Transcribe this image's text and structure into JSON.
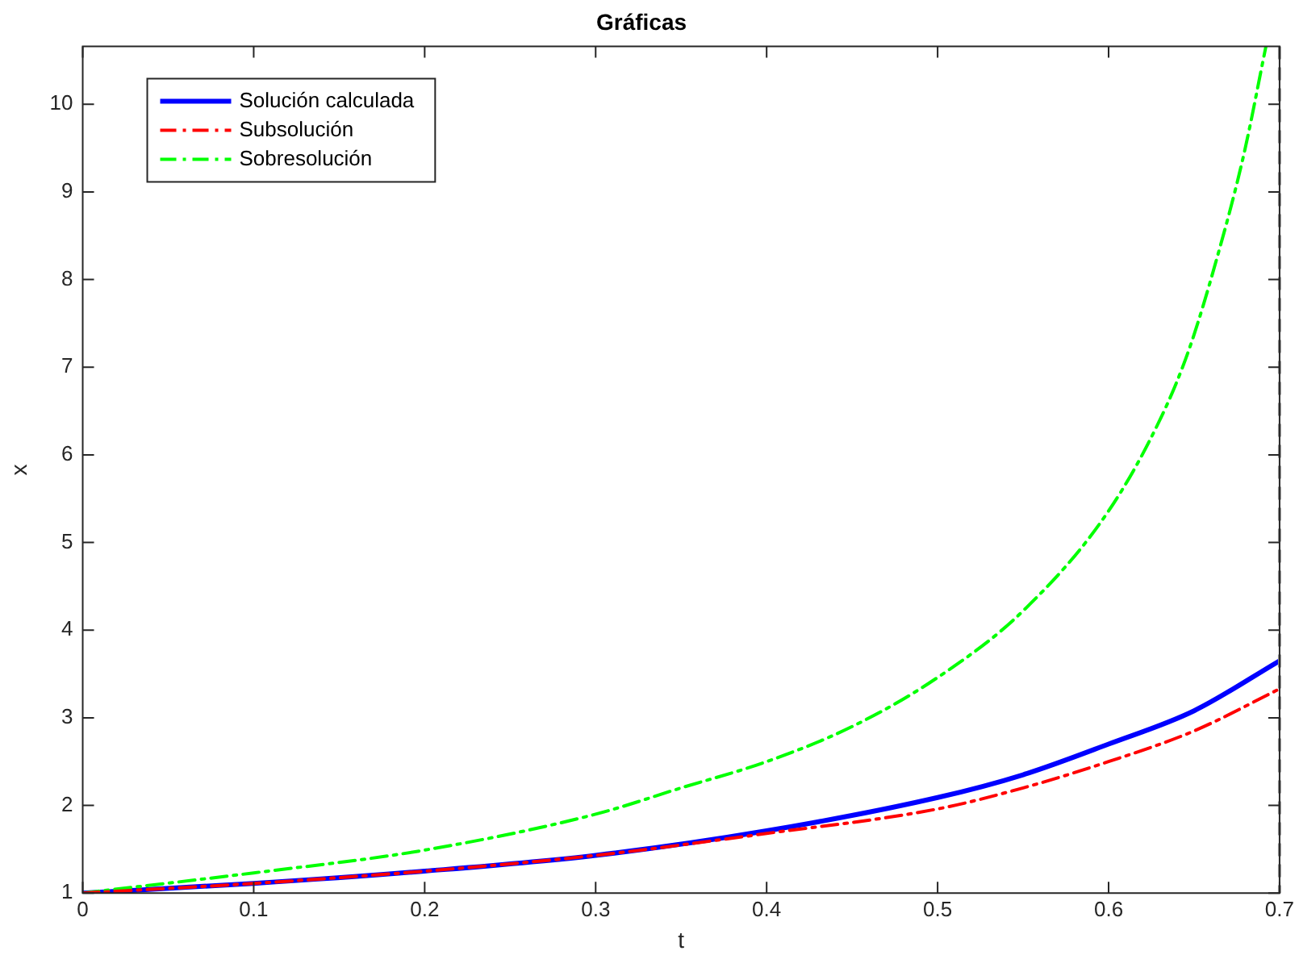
{
  "chart_data": {
    "type": "line",
    "title": "Gráficas",
    "xlabel": "t",
    "ylabel": "x",
    "xlim": [
      0,
      0.7
    ],
    "xticks": [
      0,
      0.1,
      0.2,
      0.3,
      0.4,
      0.5,
      0.6,
      0.7
    ],
    "ylim": [
      1,
      10.66
    ],
    "yticks": [
      1,
      2,
      3,
      4,
      5,
      6,
      7,
      8,
      9,
      10
    ],
    "grid": false,
    "legend": "top left",
    "marker": "none",
    "ref_lines": [
      {
        "axis": "x",
        "value": 0.7,
        "color": "#999999",
        "line_style": "dashed"
      }
    ],
    "series": [
      {
        "name": "Solución calculada",
        "color": "#0000ff",
        "line_style": "solid",
        "x": [
          0,
          0.1,
          0.2,
          0.3,
          0.4,
          0.5,
          0.55,
          0.6,
          0.65,
          0.7
        ],
        "values": [
          1,
          1.11,
          1.25,
          1.43,
          1.71,
          2.09,
          2.35,
          2.7,
          3.08,
          3.65
        ]
      },
      {
        "name": "Subsolución",
        "color": "#ff0000",
        "line_style": "dashdot",
        "x": [
          0,
          0.1,
          0.2,
          0.3,
          0.4,
          0.5,
          0.55,
          0.6,
          0.65,
          0.7
        ],
        "values": [
          1,
          1.11,
          1.25,
          1.43,
          1.68,
          1.96,
          2.2,
          2.5,
          2.85,
          3.33
        ]
      },
      {
        "name": "Sobresolución",
        "color": "#00ff00",
        "line_style": "dashdot",
        "x": [
          0,
          0.1,
          0.2,
          0.3,
          0.35,
          0.4,
          0.45,
          0.5,
          0.55,
          0.6,
          0.631,
          0.647,
          0.663,
          0.679,
          0.692
        ],
        "values": [
          1,
          1.23,
          1.49,
          1.9,
          2.2,
          2.5,
          2.9,
          3.46,
          4.22,
          5.36,
          6.44,
          7.2,
          8.22,
          9.42,
          10.66
        ]
      }
    ]
  }
}
